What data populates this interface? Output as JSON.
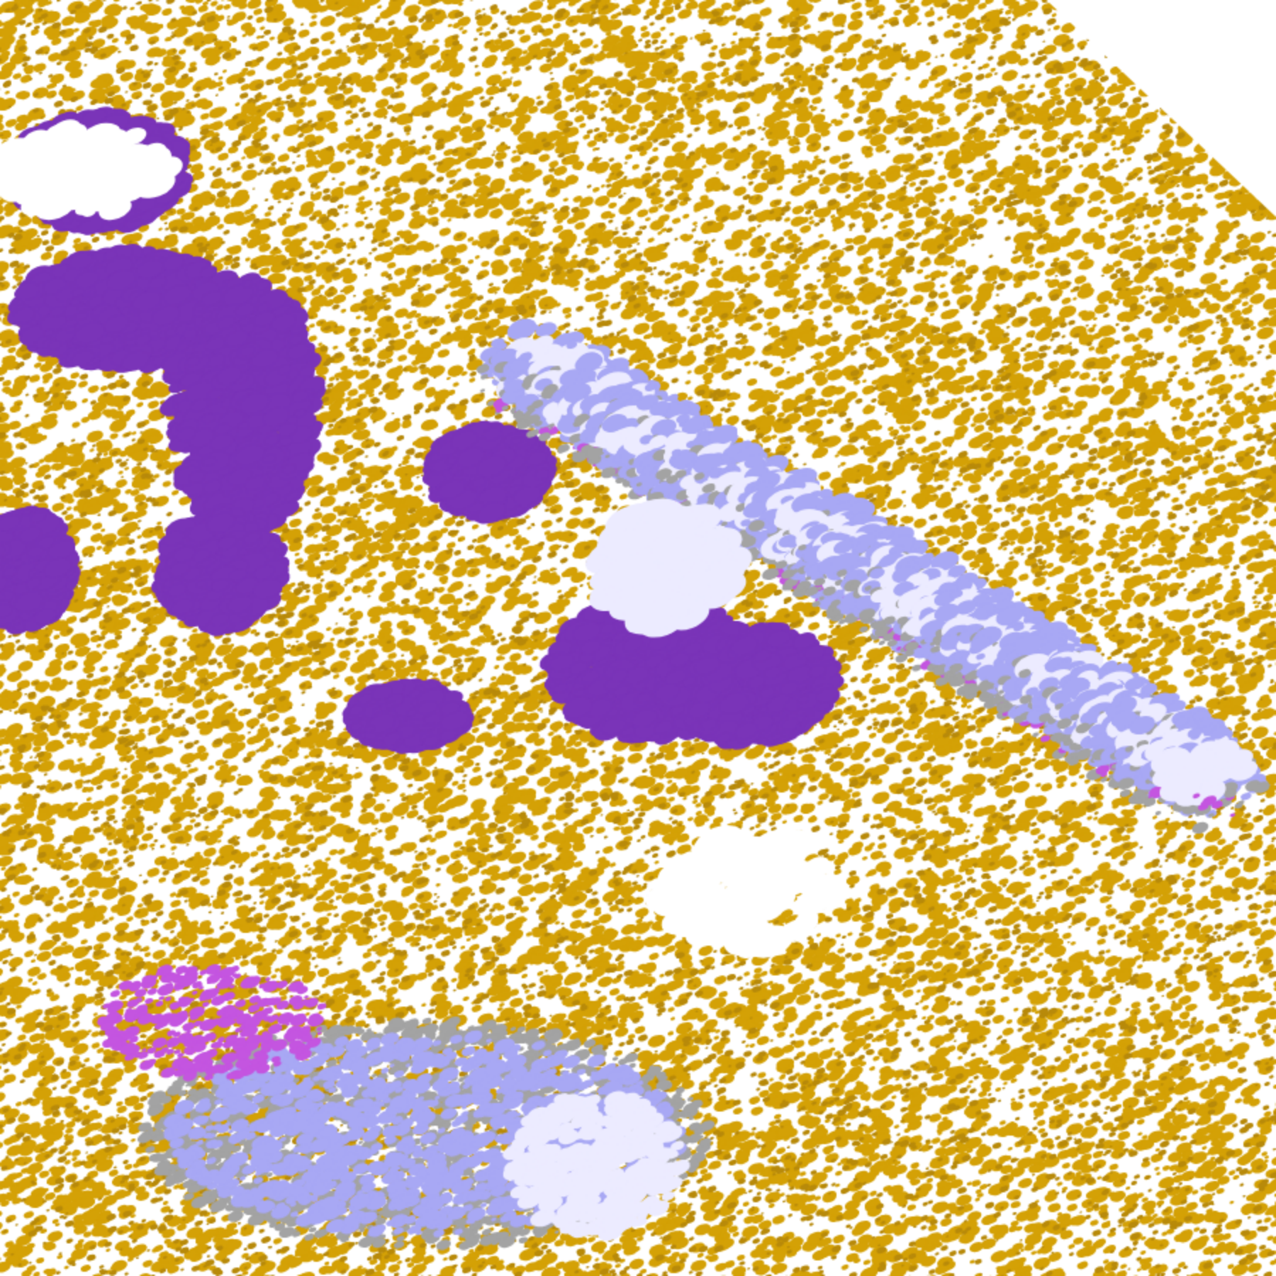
{
  "map": {
    "classes": [
      {
        "color": "#ffffff"
      },
      {
        "color": "#d4a106"
      },
      {
        "color": "#b88a0a"
      },
      {
        "color": "#7a34b8"
      },
      {
        "color": "#c455e0"
      },
      {
        "color": "#ecebff"
      },
      {
        "color": "#a8a8f4"
      },
      {
        "color": "#a3a3a3"
      }
    ]
  }
}
